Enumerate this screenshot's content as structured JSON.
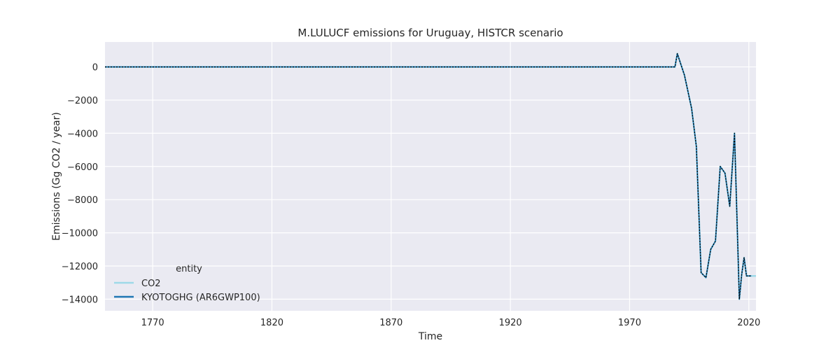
{
  "chart_data": {
    "type": "line",
    "title": "M.LULUCF emissions for Uruguay, HISTCR scenario",
    "xlabel": "Time",
    "ylabel": "Emissions (Gg CO2 / year)",
    "xlim": [
      1750,
      2023
    ],
    "ylim": [
      -14700,
      1500
    ],
    "x_ticks": [
      1770,
      1820,
      1870,
      1920,
      1970,
      2020
    ],
    "y_ticks": [
      0,
      -2000,
      -4000,
      -6000,
      -8000,
      -10000,
      -12000,
      -14000
    ],
    "y_tick_labels": [
      "0",
      "−2000",
      "−4000",
      "−6000",
      "−8000",
      "−10000",
      "−12000",
      "−14000"
    ],
    "grid": true,
    "legend": {
      "title": "entity",
      "placement": "lower-left",
      "entries": [
        "CO2",
        "KYOTOGHG (AR6GWP100)"
      ]
    },
    "series": [
      {
        "name": "CO2",
        "color": "#9ed9e8",
        "style": "solid",
        "x": [
          1750,
          1989,
          1990,
          1993,
          1996,
          1998,
          2000,
          2002,
          2004,
          2006,
          2008,
          2010,
          2012,
          2014,
          2016,
          2017,
          2018,
          2019,
          2020,
          2021,
          2022,
          2023
        ],
        "y": [
          0,
          0,
          800,
          -500,
          -2500,
          -4800,
          -12400,
          -12700,
          -11000,
          -10500,
          -6000,
          -6400,
          -8400,
          -4000,
          -14000,
          -12500,
          -11500,
          -12600,
          -12600,
          -12600,
          -12600,
          -12600
        ]
      },
      {
        "name": "KYOTOGHG (AR6GWP100)",
        "color": "#1f77b4",
        "style": "solid",
        "x": [
          1750,
          1989,
          1990,
          1993,
          1996,
          1998,
          2000,
          2002,
          2004,
          2006,
          2008,
          2010,
          2012,
          2014,
          2016,
          2017,
          2018,
          2019,
          2020,
          2021
        ],
        "y": [
          0,
          0,
          800,
          -500,
          -2500,
          -4800,
          -12400,
          -12700,
          -11000,
          -10500,
          -6000,
          -6400,
          -8400,
          -4000,
          -14000,
          -12500,
          -11500,
          -12600,
          -12600,
          -12600
        ]
      },
      {
        "name": "",
        "color": "#000000",
        "style": "dotted",
        "x": [
          1750,
          1989,
          1990,
          1993,
          1996,
          1998,
          2000,
          2002,
          2004,
          2006,
          2008,
          2010,
          2012,
          2014,
          2016,
          2017,
          2018,
          2019,
          2020,
          2021
        ],
        "y": [
          0,
          0,
          800,
          -500,
          -2500,
          -4800,
          -12400,
          -12700,
          -11000,
          -10500,
          -6000,
          -6400,
          -8400,
          -4000,
          -14000,
          -12500,
          -11500,
          -12600,
          -12600,
          -12600
        ]
      }
    ]
  }
}
